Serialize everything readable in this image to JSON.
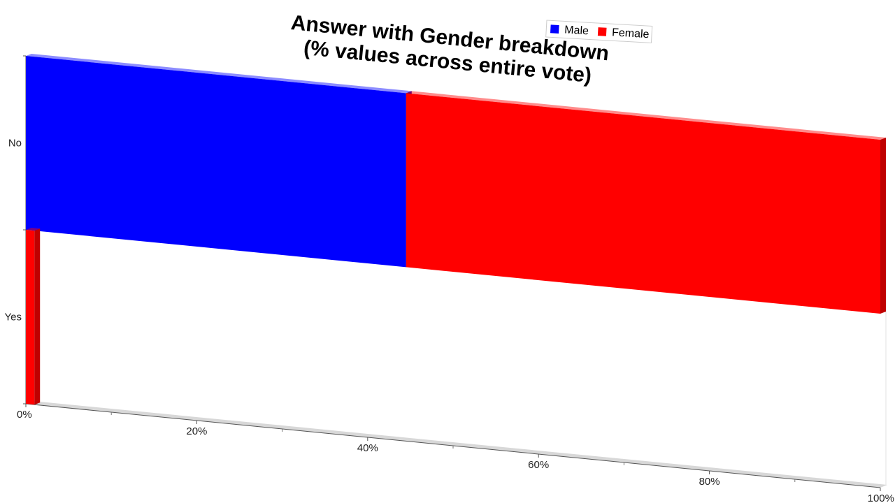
{
  "chart_data": {
    "type": "bar",
    "orientation": "horizontal",
    "stacked": true,
    "title": "Answer with Gender breakdown\n(% values across entire vote)",
    "categories": [
      "No",
      "Yes"
    ],
    "series": [
      {
        "name": "Male",
        "color": "#0000ff",
        "values": [
          44.5,
          0
        ]
      },
      {
        "name": "Female",
        "color": "#ff0000",
        "values": [
          55.5,
          1
        ]
      }
    ],
    "x_tick_labels": [
      "0%",
      "20%",
      "40%",
      "60%",
      "80%",
      "100%"
    ],
    "xlim": [
      0,
      100
    ],
    "legend_position": "top-right",
    "grid": false
  }
}
